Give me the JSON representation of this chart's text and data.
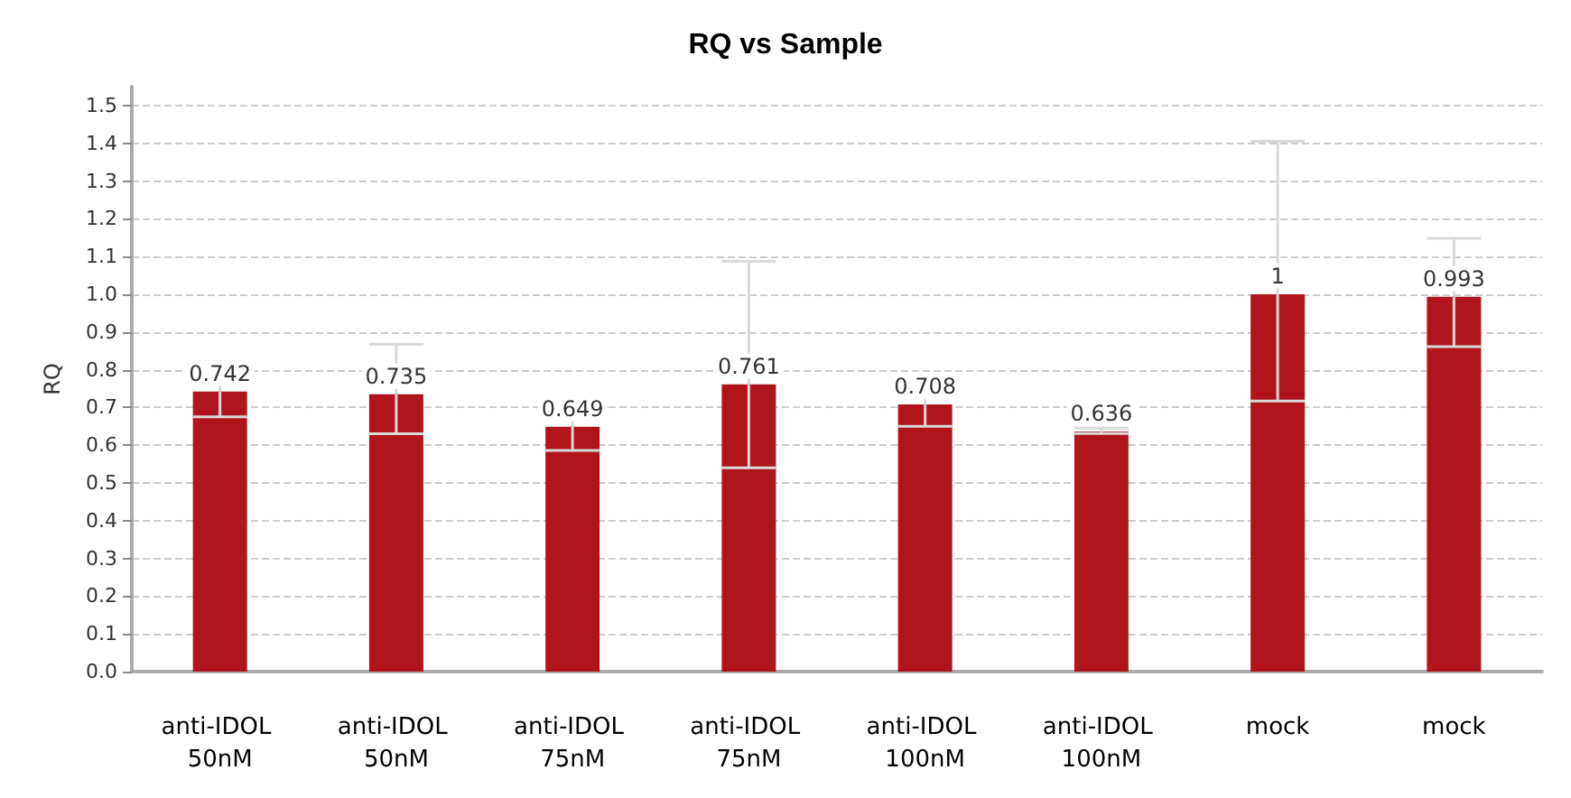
{
  "chart_data": {
    "type": "bar",
    "title": "RQ vs Sample",
    "ylabel": "RQ",
    "categories": [
      "anti-IDOL 50nM",
      "anti-IDOL 50nM",
      "anti-IDOL 75nM",
      "anti-IDOL 75nM",
      "anti-IDOL 100nM",
      "anti-IDOL 100nM",
      "mock",
      "mock"
    ],
    "values": [
      0.742,
      0.735,
      0.649,
      0.761,
      0.708,
      0.636,
      1,
      0.993
    ],
    "errors": [
      [
        0.675,
        0.82
      ],
      [
        0.63,
        0.867
      ],
      [
        0.586,
        0.725
      ],
      [
        0.54,
        1.087
      ],
      [
        0.65,
        0.74
      ],
      [
        0.631,
        0.645
      ],
      [
        0.717,
        1.405
      ],
      [
        0.861,
        1.148
      ]
    ],
    "color": "#b0151e",
    "data_labels": true,
    "grid": "y",
    "ylim": [
      0,
      1.55
    ],
    "yticks": [
      {
        "value": 0,
        "label": "0.0"
      },
      0.1,
      0.2,
      0.3,
      0.4,
      0.5,
      0.6,
      0.7,
      0.8,
      0.9,
      {
        "value": 1,
        "label": "1.0"
      },
      1.1,
      1.2,
      1.3,
      1.4,
      1.5
    ]
  }
}
